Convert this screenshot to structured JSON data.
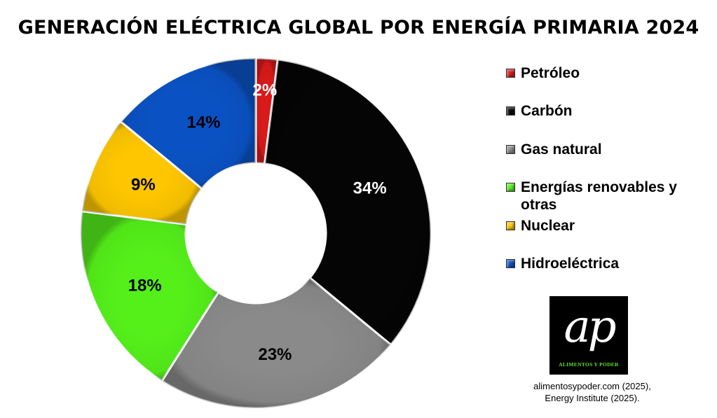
{
  "chart_data": {
    "type": "pie",
    "title": "GENERACIÓN ELÉCTRICA GLOBAL POR ENERGÍA PRIMARIA 2024",
    "categories": [
      "Petróleo",
      "Carbón",
      "Gas natural",
      "Energías renovables y otras",
      "Nuclear",
      "Hidroeléctrica"
    ],
    "values": [
      2,
      34,
      23,
      18,
      9,
      14
    ],
    "data_labels": [
      "2%",
      "34%",
      "23%",
      "18%",
      "9%",
      "14%"
    ],
    "colors": [
      "#d91a1a",
      "#050505",
      "#8a8a8a",
      "#55f01a",
      "#fdc600",
      "#0a52c4"
    ],
    "label_colors": [
      "#ffffff",
      "#ffffff",
      "#000000",
      "#000000",
      "#000000",
      "#000000"
    ],
    "donut": true,
    "legend_position": "right"
  },
  "legend": {
    "items": [
      {
        "label": "Petróleo",
        "color": "#d91a1a"
      },
      {
        "label": "Carbón",
        "color": "#050505"
      },
      {
        "label": "Gas natural",
        "color": "#8a8a8a"
      },
      {
        "label": "Energías renovables y otras",
        "color": "#55f01a"
      },
      {
        "label": "Nuclear",
        "color": "#fdc600"
      },
      {
        "label": "Hidroeléctrica",
        "color": "#0a52c4"
      }
    ]
  },
  "logo": {
    "mark": "ap",
    "tagline": "ALIMENTOS Y PODER",
    "tagline_color": "#5fe02a"
  },
  "source": {
    "line1": "alimentosypoder.com (2025),",
    "line2": "Energy Institute (2025)."
  }
}
